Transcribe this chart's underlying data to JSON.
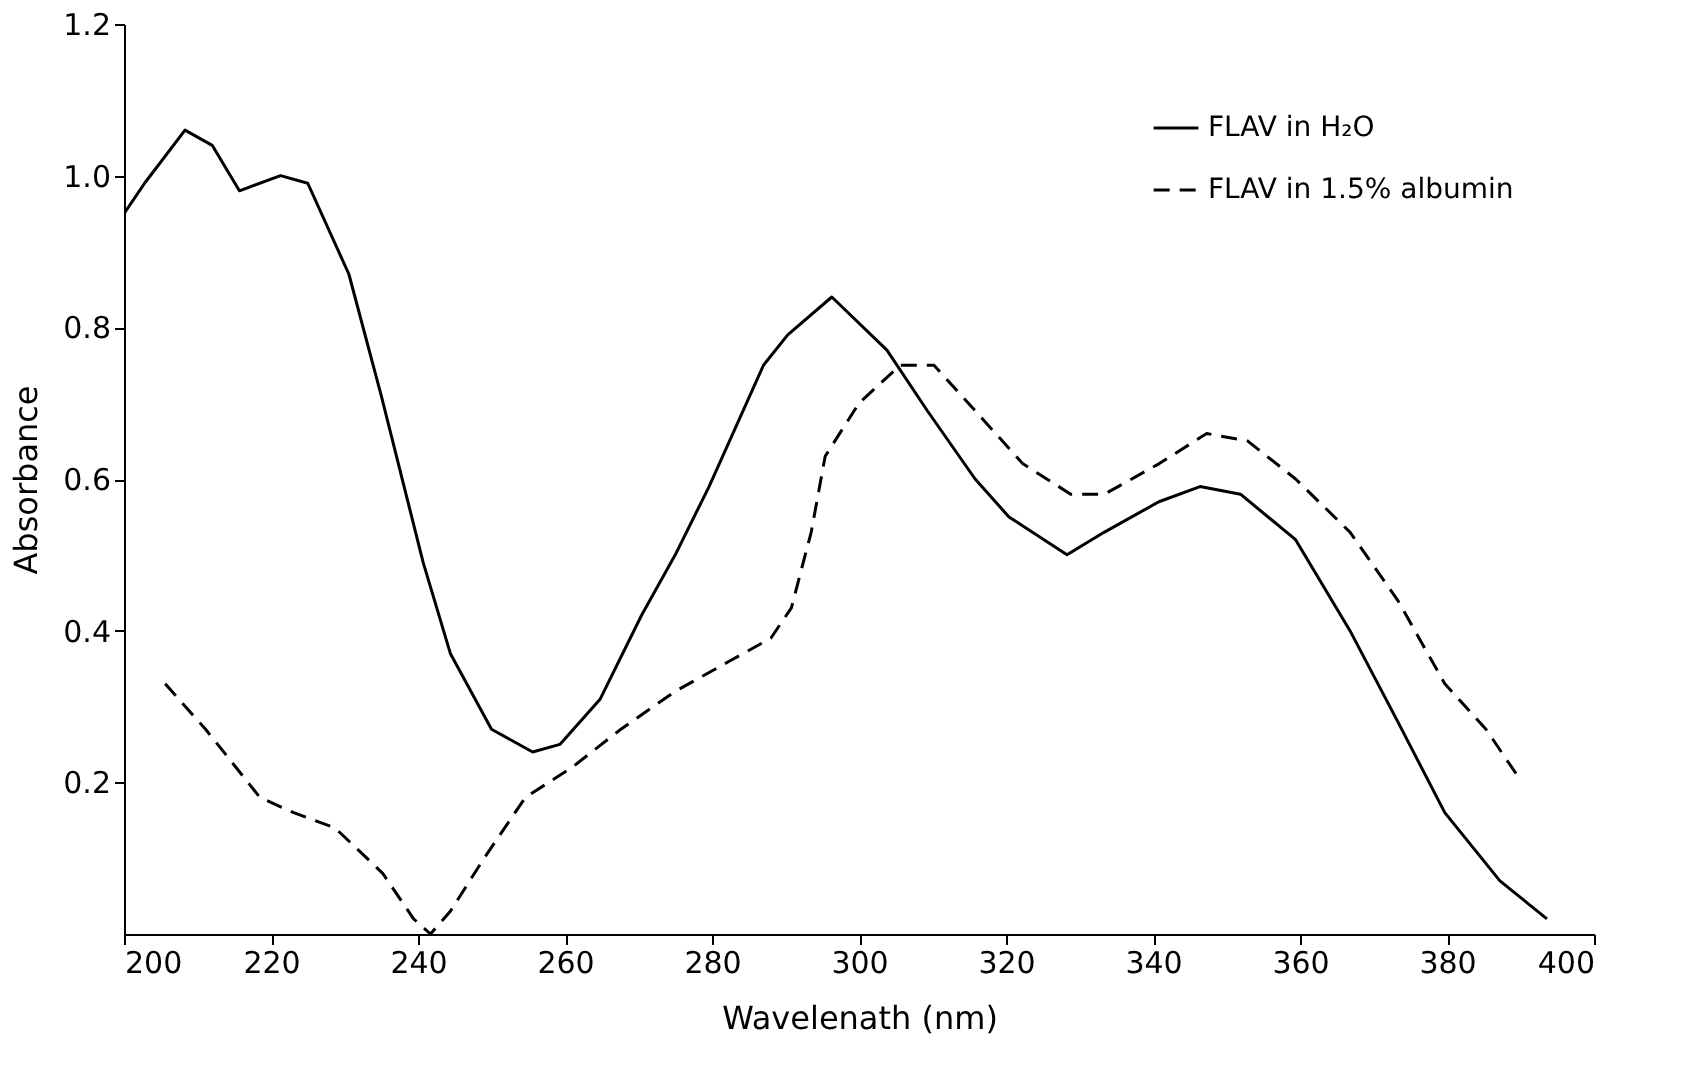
{
  "chart_data": {
    "type": "line",
    "xlabel": "Wavelenath (nm)",
    "ylabel": "Absorbance",
    "xlim": [
      200,
      400
    ],
    "ylim": [
      0,
      1.2
    ],
    "xticks": [
      200,
      220,
      240,
      260,
      280,
      300,
      320,
      340,
      360,
      380,
      400
    ],
    "yticks": [
      0.2,
      0.4,
      0.6,
      0.8,
      {
        "value": 1.0,
        "label": "1.0"
      },
      1.2
    ],
    "grid": false,
    "legend": "top right",
    "marker": "none",
    "series": [
      {
        "name": "FLAV in H₂O",
        "color": "#000000",
        "line_style": "solid",
        "x": [
          200,
          202.8,
          208.3,
          212,
          215.7,
          221.3,
          225,
          230.6,
          235,
          240.7,
          244.4,
          250,
          255.6,
          259.3,
          264.8,
          270.4,
          275,
          279.6,
          287,
          290.3,
          296.3,
          303.8,
          309.3,
          315.8,
          320.4,
          328.3,
          333.4,
          340.8,
          346.4,
          351.9,
          359.4,
          366.8,
          373.3,
          379.7,
          387.2,
          393.6
        ],
        "values": [
          0.95,
          0.99,
          1.06,
          1.04,
          0.98,
          1.0,
          0.99,
          0.87,
          0.71,
          0.49,
          0.37,
          0.27,
          0.24,
          0.25,
          0.31,
          0.42,
          0.5,
          0.59,
          0.75,
          0.79,
          0.84,
          0.77,
          0.69,
          0.6,
          0.55,
          0.5,
          0.53,
          0.57,
          0.59,
          0.58,
          0.52,
          0.4,
          0.28,
          0.16,
          0.07,
          0.02
        ]
      },
      {
        "name": "FLAV in 1.5% albumin",
        "color": "#000000",
        "line_style": "dashed",
        "x": [
          205.6,
          211.1,
          218.5,
          223.1,
          228.7,
          235.2,
          239.4,
          241.7,
          244.4,
          249,
          254.6,
          261,
          267.6,
          275,
          282.4,
          288,
          290.8,
          293.5,
          295.4,
          300,
          305.6,
          310.2,
          315.8,
          322.3,
          328.8,
          333.4,
          340.8,
          347.3,
          352.9,
          359.4,
          366.8,
          373.3,
          379.7,
          385.3,
          389.5
        ],
        "values": [
          0.33,
          0.27,
          0.18,
          0.16,
          0.14,
          0.08,
          0.02,
          0.0,
          0.03,
          0.1,
          0.18,
          0.22,
          0.27,
          0.32,
          0.36,
          0.39,
          0.43,
          0.53,
          0.63,
          0.7,
          0.75,
          0.75,
          0.69,
          0.62,
          0.58,
          0.58,
          0.62,
          0.66,
          0.65,
          0.6,
          0.53,
          0.44,
          0.33,
          0.27,
          0.21
        ]
      }
    ]
  }
}
